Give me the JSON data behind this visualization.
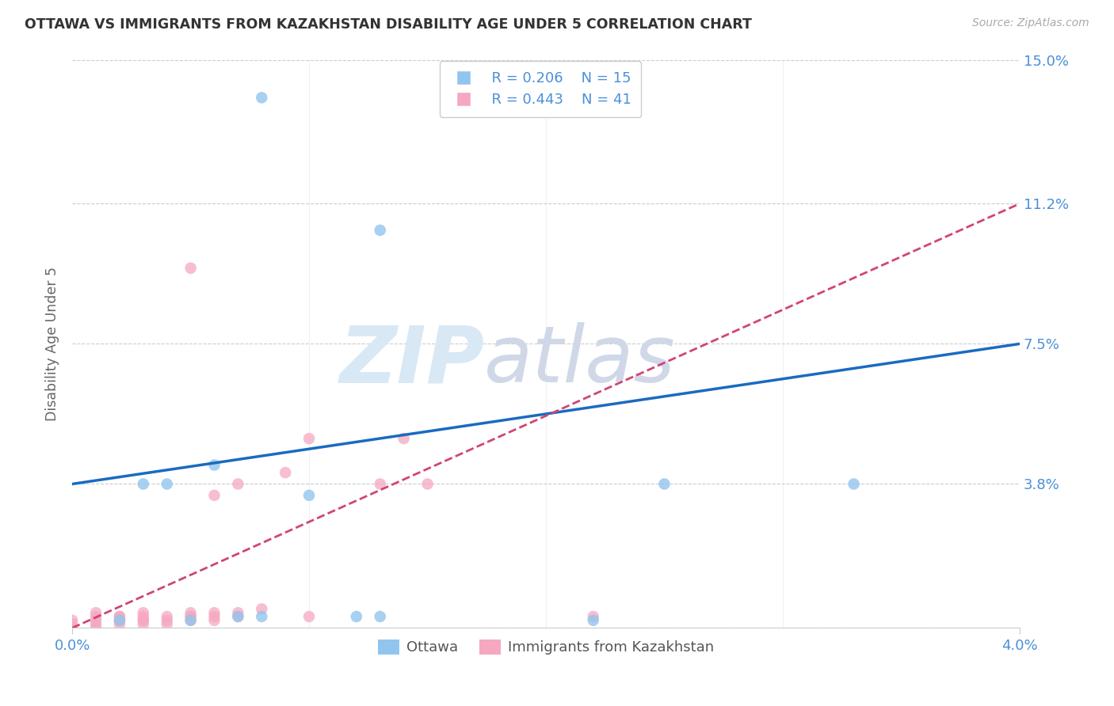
{
  "title": "OTTAWA VS IMMIGRANTS FROM KAZAKHSTAN DISABILITY AGE UNDER 5 CORRELATION CHART",
  "source": "Source: ZipAtlas.com",
  "ylabel": "Disability Age Under 5",
  "xlabel_ottawa": "Ottawa",
  "xlabel_kaz": "Immigrants from Kazakhstan",
  "xlim": [
    0.0,
    0.04
  ],
  "ylim": [
    0.0,
    0.15
  ],
  "ytick_vals": [
    0.0,
    0.038,
    0.075,
    0.112,
    0.15
  ],
  "ytick_labels": [
    "",
    "3.8%",
    "7.5%",
    "11.2%",
    "15.0%"
  ],
  "xtick_vals": [
    0.0,
    0.04
  ],
  "xtick_labels": [
    "0.0%",
    "4.0%"
  ],
  "legend_r_ottawa": "R = 0.206",
  "legend_n_ottawa": "N = 15",
  "legend_r_kaz": "R = 0.443",
  "legend_n_kaz": "N = 41",
  "color_ottawa": "#92C5EE",
  "color_kaz": "#F5A8C0",
  "color_trend_ottawa": "#1A6BBF",
  "color_trend_kaz": "#D04575",
  "color_axis": "#4A90D9",
  "color_text": "#333333",
  "color_source": "#AAAAAA",
  "color_grid": "#CCCCCC",
  "ottawa_line_y0": 0.038,
  "ottawa_line_y1": 0.075,
  "kaz_line_y0": 0.0,
  "kaz_line_y1": 0.112,
  "ottawa_x": [
    0.008,
    0.013,
    0.002,
    0.003,
    0.004,
    0.005,
    0.006,
    0.007,
    0.008,
    0.01,
    0.012,
    0.013,
    0.022,
    0.025,
    0.033
  ],
  "ottawa_y": [
    0.14,
    0.105,
    0.002,
    0.038,
    0.038,
    0.002,
    0.043,
    0.003,
    0.003,
    0.035,
    0.003,
    0.003,
    0.002,
    0.038,
    0.038
  ],
  "kaz_x": [
    0.0,
    0.0,
    0.0,
    0.001,
    0.001,
    0.001,
    0.001,
    0.001,
    0.002,
    0.002,
    0.002,
    0.002,
    0.002,
    0.003,
    0.003,
    0.003,
    0.003,
    0.003,
    0.004,
    0.004,
    0.004,
    0.005,
    0.005,
    0.005,
    0.005,
    0.005,
    0.006,
    0.006,
    0.006,
    0.006,
    0.007,
    0.007,
    0.007,
    0.008,
    0.009,
    0.01,
    0.01,
    0.013,
    0.014,
    0.015,
    0.022
  ],
  "kaz_y": [
    0.0,
    0.001,
    0.002,
    0.0,
    0.001,
    0.002,
    0.003,
    0.004,
    0.001,
    0.002,
    0.002,
    0.003,
    0.003,
    0.001,
    0.002,
    0.002,
    0.003,
    0.004,
    0.001,
    0.002,
    0.003,
    0.002,
    0.003,
    0.003,
    0.004,
    0.095,
    0.002,
    0.003,
    0.004,
    0.035,
    0.003,
    0.004,
    0.038,
    0.005,
    0.041,
    0.003,
    0.05,
    0.038,
    0.05,
    0.038,
    0.003
  ],
  "watermark_zip": "ZIP",
  "watermark_atlas": "atlas"
}
